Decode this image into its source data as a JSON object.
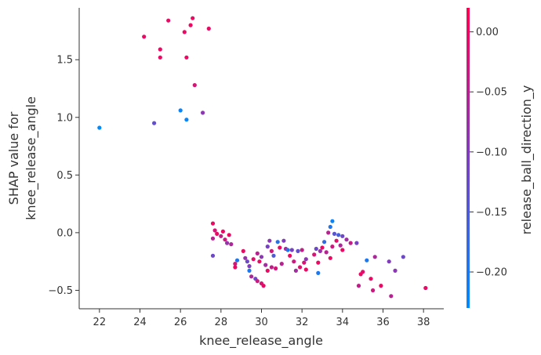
{
  "chart_data": {
    "type": "scatter",
    "title": "",
    "xlabel": "knee_release_angle",
    "ylabel_lines": [
      "SHAP value for",
      "knee_release_angle"
    ],
    "xlim": [
      21.0,
      39.0
    ],
    "ylim": [
      -0.66,
      1.95
    ],
    "xticks": [
      22,
      24,
      26,
      28,
      30,
      32,
      34,
      36,
      38
    ],
    "yticks": [
      -0.5,
      0.0,
      0.5,
      1.0,
      1.5
    ],
    "xtick_labels": [
      "22",
      "24",
      "26",
      "28",
      "30",
      "32",
      "34",
      "36",
      "38"
    ],
    "ytick_labels": [
      "−0.5",
      "0.0",
      "0.5",
      "1.0",
      "1.5"
    ],
    "grid": false,
    "colorbar": {
      "label": "release_ball_direction_y",
      "range": [
        -0.23,
        0.02
      ],
      "ticks": [
        0.0,
        -0.05,
        -0.1,
        -0.15,
        -0.2
      ],
      "tick_labels": [
        "0.00",
        "−0.05",
        "−0.10",
        "−0.15",
        "−0.20"
      ],
      "color_low": "#008afb",
      "color_mid": "#7c3fc0",
      "color_high": "#ff0052"
    },
    "points": [
      {
        "x": 22.0,
        "y": 0.91,
        "c": -0.23
      },
      {
        "x": 24.2,
        "y": 1.7,
        "c": 0.0
      },
      {
        "x": 24.7,
        "y": 0.95,
        "c": -0.13
      },
      {
        "x": 25.0,
        "y": 1.59,
        "c": 0.0
      },
      {
        "x": 25.0,
        "y": 1.52,
        "c": 0.0
      },
      {
        "x": 25.4,
        "y": 1.84,
        "c": 0.0
      },
      {
        "x": 26.0,
        "y": 1.06,
        "c": -0.22
      },
      {
        "x": 26.2,
        "y": 1.74,
        "c": 0.0
      },
      {
        "x": 26.3,
        "y": 1.52,
        "c": 0.0
      },
      {
        "x": 26.3,
        "y": 0.98,
        "c": -0.22
      },
      {
        "x": 26.5,
        "y": 1.8,
        "c": 0.0
      },
      {
        "x": 26.6,
        "y": 1.86,
        "c": 0.0
      },
      {
        "x": 26.7,
        "y": 1.28,
        "c": -0.02
      },
      {
        "x": 27.1,
        "y": 1.04,
        "c": -0.09
      },
      {
        "x": 27.4,
        "y": 1.77,
        "c": 0.0
      },
      {
        "x": 27.6,
        "y": 0.08,
        "c": 0.0
      },
      {
        "x": 27.6,
        "y": -0.2,
        "c": -0.12
      },
      {
        "x": 27.6,
        "y": -0.05,
        "c": -0.05
      },
      {
        "x": 27.7,
        "y": 0.02,
        "c": -0.02
      },
      {
        "x": 27.8,
        "y": -0.01,
        "c": 0.0
      },
      {
        "x": 28.0,
        "y": -0.03,
        "c": -0.04
      },
      {
        "x": 28.1,
        "y": 0.01,
        "c": 0.0
      },
      {
        "x": 28.2,
        "y": -0.06,
        "c": -0.03
      },
      {
        "x": 28.3,
        "y": -0.09,
        "c": -0.08
      },
      {
        "x": 28.4,
        "y": -0.02,
        "c": 0.0
      },
      {
        "x": 28.5,
        "y": -0.1,
        "c": -0.06
      },
      {
        "x": 28.7,
        "y": -0.3,
        "c": 0.0
      },
      {
        "x": 28.7,
        "y": -0.27,
        "c": -0.02
      },
      {
        "x": 28.8,
        "y": -0.24,
        "c": -0.2
      },
      {
        "x": 29.1,
        "y": -0.16,
        "c": 0.0
      },
      {
        "x": 29.2,
        "y": -0.22,
        "c": -0.08
      },
      {
        "x": 29.3,
        "y": -0.25,
        "c": -0.12
      },
      {
        "x": 29.4,
        "y": -0.33,
        "c": -0.2
      },
      {
        "x": 29.4,
        "y": -0.29,
        "c": -0.1
      },
      {
        "x": 29.5,
        "y": -0.38,
        "c": -0.06
      },
      {
        "x": 29.6,
        "y": -0.23,
        "c": -0.01
      },
      {
        "x": 29.7,
        "y": -0.4,
        "c": -0.12
      },
      {
        "x": 29.8,
        "y": -0.18,
        "c": -0.05
      },
      {
        "x": 29.8,
        "y": -0.42,
        "c": -0.03
      },
      {
        "x": 29.9,
        "y": -0.25,
        "c": 0.0
      },
      {
        "x": 30.0,
        "y": -0.21,
        "c": -0.09
      },
      {
        "x": 30.0,
        "y": -0.44,
        "c": -0.02
      },
      {
        "x": 30.1,
        "y": -0.46,
        "c": 0.0
      },
      {
        "x": 30.2,
        "y": -0.28,
        "c": -0.07
      },
      {
        "x": 30.3,
        "y": -0.12,
        "c": -0.11
      },
      {
        "x": 30.3,
        "y": -0.33,
        "c": 0.0
      },
      {
        "x": 30.4,
        "y": -0.07,
        "c": -0.09
      },
      {
        "x": 30.5,
        "y": -0.16,
        "c": -0.03
      },
      {
        "x": 30.5,
        "y": -0.3,
        "c": -0.04
      },
      {
        "x": 30.6,
        "y": -0.2,
        "c": -0.15
      },
      {
        "x": 30.7,
        "y": -0.31,
        "c": -0.02
      },
      {
        "x": 30.8,
        "y": -0.08,
        "c": -0.19
      },
      {
        "x": 30.9,
        "y": -0.13,
        "c": 0.0
      },
      {
        "x": 31.0,
        "y": -0.27,
        "c": -0.05
      },
      {
        "x": 31.1,
        "y": -0.07,
        "c": -0.1
      },
      {
        "x": 31.2,
        "y": -0.14,
        "c": -0.06
      },
      {
        "x": 31.3,
        "y": -0.15,
        "c": -0.2
      },
      {
        "x": 31.4,
        "y": -0.2,
        "c": 0.0
      },
      {
        "x": 31.5,
        "y": -0.15,
        "c": -0.11
      },
      {
        "x": 31.6,
        "y": -0.25,
        "c": -0.03
      },
      {
        "x": 31.7,
        "y": -0.33,
        "c": -0.07
      },
      {
        "x": 31.8,
        "y": -0.16,
        "c": -0.13
      },
      {
        "x": 31.9,
        "y": -0.3,
        "c": -0.01
      },
      {
        "x": 32.0,
        "y": -0.15,
        "c": -0.04
      },
      {
        "x": 32.1,
        "y": -0.26,
        "c": -0.02
      },
      {
        "x": 32.2,
        "y": -0.23,
        "c": -0.09
      },
      {
        "x": 32.2,
        "y": -0.32,
        "c": 0.0
      },
      {
        "x": 32.6,
        "y": -0.19,
        "c": -0.02
      },
      {
        "x": 32.7,
        "y": -0.14,
        "c": -0.12
      },
      {
        "x": 32.8,
        "y": -0.35,
        "c": -0.2
      },
      {
        "x": 32.8,
        "y": -0.26,
        "c": 0.0
      },
      {
        "x": 32.9,
        "y": -0.16,
        "c": -0.08
      },
      {
        "x": 33.0,
        "y": -0.13,
        "c": 0.0
      },
      {
        "x": 33.1,
        "y": -0.08,
        "c": -0.18
      },
      {
        "x": 33.2,
        "y": -0.17,
        "c": -0.05
      },
      {
        "x": 33.3,
        "y": 0.0,
        "c": -0.05
      },
      {
        "x": 33.4,
        "y": 0.05,
        "c": -0.2
      },
      {
        "x": 33.4,
        "y": -0.22,
        "c": 0.0
      },
      {
        "x": 33.5,
        "y": 0.1,
        "c": -0.22
      },
      {
        "x": 33.5,
        "y": -0.12,
        "c": -0.03
      },
      {
        "x": 33.6,
        "y": -0.01,
        "c": -0.14
      },
      {
        "x": 33.7,
        "y": -0.07,
        "c": -0.01
      },
      {
        "x": 33.8,
        "y": -0.02,
        "c": -0.16
      },
      {
        "x": 33.9,
        "y": -0.11,
        "c": -0.06
      },
      {
        "x": 34.0,
        "y": -0.03,
        "c": -0.12
      },
      {
        "x": 34.0,
        "y": -0.15,
        "c": 0.0
      },
      {
        "x": 34.2,
        "y": -0.06,
        "c": -0.07
      },
      {
        "x": 34.4,
        "y": -0.09,
        "c": -0.04
      },
      {
        "x": 34.7,
        "y": -0.09,
        "c": -0.11
      },
      {
        "x": 34.8,
        "y": -0.46,
        "c": -0.04
      },
      {
        "x": 34.9,
        "y": -0.36,
        "c": 0.0
      },
      {
        "x": 35.0,
        "y": -0.34,
        "c": -0.01
      },
      {
        "x": 35.2,
        "y": -0.24,
        "c": -0.2
      },
      {
        "x": 35.4,
        "y": -0.4,
        "c": 0.0
      },
      {
        "x": 35.5,
        "y": -0.5,
        "c": -0.03
      },
      {
        "x": 35.6,
        "y": -0.21,
        "c": -0.06
      },
      {
        "x": 35.9,
        "y": -0.46,
        "c": 0.0
      },
      {
        "x": 36.3,
        "y": -0.25,
        "c": -0.1
      },
      {
        "x": 36.4,
        "y": -0.55,
        "c": -0.05
      },
      {
        "x": 36.6,
        "y": -0.33,
        "c": -0.09
      },
      {
        "x": 37.0,
        "y": -0.21,
        "c": -0.12
      },
      {
        "x": 38.1,
        "y": -0.48,
        "c": 0.0
      }
    ]
  }
}
